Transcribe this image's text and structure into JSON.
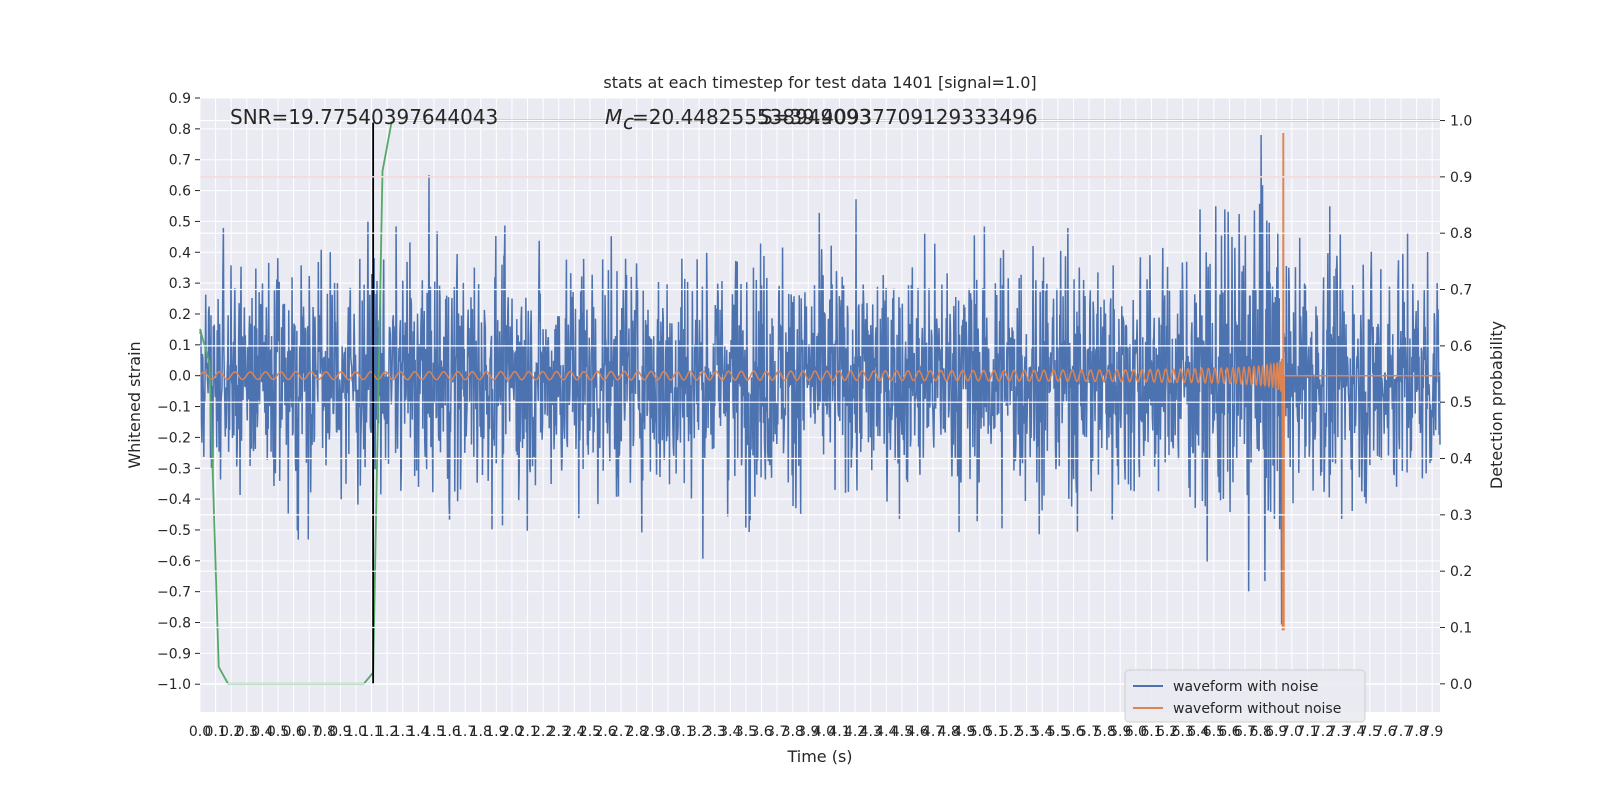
{
  "chart_data": {
    "type": "line",
    "title": "stats at each timestep for test data 1401 [signal=1.0]",
    "xlabel": "Time (s)",
    "ylabel": "Whitened strain",
    "y2label": "Detection probability",
    "xlim": [
      0.0,
      7.95
    ],
    "ylim": [
      -1.09,
      0.9
    ],
    "y2lim": [
      -0.05,
      1.04
    ],
    "x_ticks": [
      "0.0",
      "0.1",
      "0.2",
      "0.3",
      "0.4",
      "0.5",
      "0.6",
      "0.7",
      "0.8",
      "0.9",
      "1.0",
      "1.1",
      "1.2",
      "1.3",
      "1.4",
      "1.5",
      "1.6",
      "1.7",
      "1.8",
      "1.9",
      "2.0",
      "2.1",
      "2.2",
      "2.3",
      "2.4",
      "2.5",
      "2.6",
      "2.7",
      "2.8",
      "2.9",
      "3.0",
      "3.1",
      "3.2",
      "3.3",
      "3.4",
      "3.5",
      "3.6",
      "3.7",
      "3.8",
      "3.9",
      "4.0",
      "4.1",
      "4.2",
      "4.3",
      "4.4",
      "4.5",
      "4.6",
      "4.7",
      "4.8",
      "4.9",
      "5.0",
      "5.1",
      "5.2",
      "5.3",
      "5.4",
      "5.5",
      "5.6",
      "5.7",
      "5.8",
      "5.9",
      "6.0",
      "6.1",
      "6.2",
      "6.3",
      "6.4",
      "6.5",
      "6.6",
      "6.7",
      "6.8",
      "6.9",
      "7.0",
      "7.1",
      "7.2",
      "7.3",
      "7.4",
      "7.5",
      "7.6",
      "7.7",
      "7.8",
      "7.9"
    ],
    "y_ticks": [
      "0.9",
      "0.8",
      "0.7",
      "0.6",
      "0.5",
      "0.4",
      "0.3",
      "0.2",
      "0.1",
      "0.0",
      "−0.1",
      "−0.2",
      "−0.3",
      "−0.4",
      "−0.5",
      "−0.6",
      "−0.7",
      "−0.8",
      "−0.9",
      "−1.0"
    ],
    "y2_ticks": [
      "1.0",
      "0.9",
      "0.8",
      "0.7",
      "0.6",
      "0.5",
      "0.4",
      "0.3",
      "0.2",
      "0.1",
      "0.0"
    ],
    "annotations": {
      "snr": "SNR=19.77540397644043",
      "mc": "=20.448255538949093",
      "mc_symbol": "M",
      "mc_sub": "c",
      "second": "S=39.40937709129333496"
    },
    "series": [
      {
        "name": "waveform with noise",
        "color": "#4c72b0",
        "kind": "noise",
        "amplitude_std": 0.19,
        "max": 0.78,
        "min": -0.97
      },
      {
        "name": "waveform without noise",
        "color": "#dd8452",
        "kind": "chirp",
        "merger_time": 6.95,
        "peak": 0.8,
        "trough": -0.84
      },
      {
        "name": "detection probability",
        "color": "#55a868",
        "axis": "right",
        "x": [
          0.0,
          0.06,
          0.12,
          0.18,
          1.05,
          1.11,
          1.17,
          1.23,
          7.95
        ],
        "y": [
          0.63,
          0.57,
          0.03,
          0.0,
          0.0,
          0.02,
          0.91,
          1.0,
          1.0
        ]
      }
    ],
    "threshold_line": {
      "axis": "right",
      "value": 0.9,
      "color": "#c44e52"
    },
    "vertical_marker": {
      "x": 1.11,
      "y_from": -1.0,
      "y_to": 0.82,
      "color": "#000000"
    },
    "legend": {
      "position": "bottom-right",
      "entries": [
        "waveform with noise",
        "waveform without noise"
      ]
    }
  }
}
